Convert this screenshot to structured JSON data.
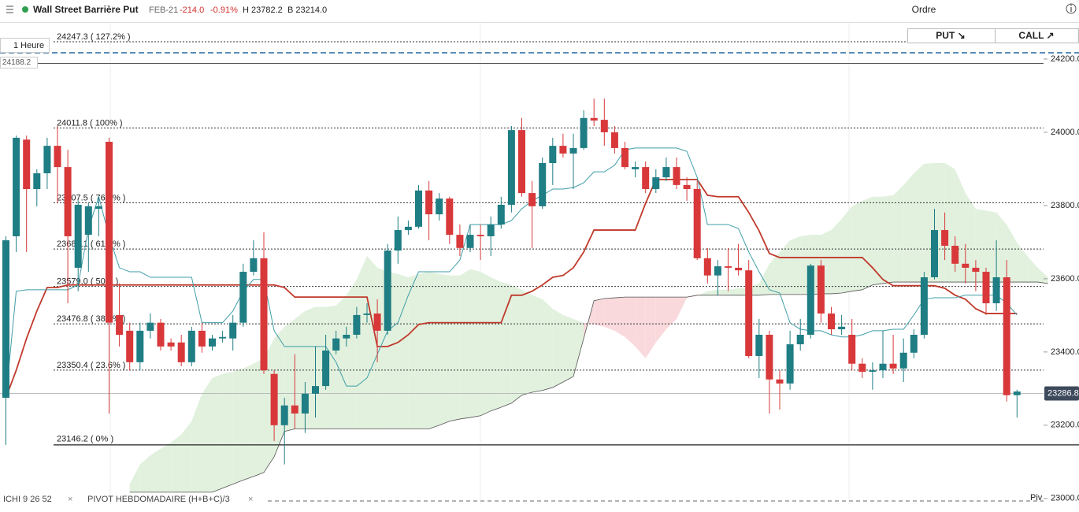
{
  "header": {
    "name": "Wall Street Barrière Put",
    "expiry": "FEB-21",
    "change": "-214.0",
    "change_pct": "-0.91%",
    "high": "H 23782.2",
    "low": "B 23214.0",
    "order": "Ordre",
    "buttons": [
      "PUT ↘",
      "CALL ↗"
    ]
  },
  "chart_data": {
    "type": "candlestick",
    "timeframe": "1 Heure",
    "indicators": [
      "ICHI  9  26  52",
      "PIVOT  HEBDOMADAIRE  (H+B+C)/3"
    ],
    "up_color": "#1f7d84",
    "down_color": "#d8383a",
    "ylim": [
      22963,
      24301
    ],
    "yticks": [
      {
        "value": 24200,
        "label": "24200.0"
      },
      {
        "value": 24000,
        "label": "24000.0"
      },
      {
        "value": 23800,
        "label": "23800.0"
      },
      {
        "value": 23600,
        "label": "23600.0"
      },
      {
        "value": 23400,
        "label": "23400.0"
      },
      {
        "value": 23200,
        "label": "23200.0"
      },
      {
        "value": 23000,
        "label": "23000.0"
      }
    ],
    "open": [
      23275,
      23716,
      23980,
      23845,
      23888,
      23963,
      23905,
      23630,
      23720,
      23791,
      23974,
      23501,
      23458,
      23372,
      23458,
      23480,
      23426,
      23426,
      23372,
      23458,
      23415,
      23437,
      23437,
      23480,
      23619,
      23656,
      23340,
      23200,
      23254,
      23232,
      23286,
      23307,
      23404,
      23437,
      23447,
      23501,
      23505,
      23458,
      23677,
      23733,
      23742,
      23841,
      23776,
      23819,
      23720,
      23684,
      23720,
      23716,
      23748,
      23802,
      24006,
      23834,
      23798,
      23916,
      23963,
      23942,
      23957,
      24039,
      24034,
      24000,
      23957,
      23899,
      23905,
      23845,
      23877,
      23905,
      23856,
      23845,
      23656,
      23609,
      23634,
      23630,
      23623,
      23389,
      23447,
      23325,
      23314,
      23421,
      23447,
      23636,
      23505,
      23462,
      23447,
      23368,
      23346,
      23350,
      23368,
      23355,
      23398,
      23447,
      23604,
      23733,
      23690,
      23641,
      23630,
      23619,
      23533,
      23604,
      23282
    ],
    "close": [
      23705,
      23985,
      23845,
      23888,
      23963,
      23905,
      23716,
      23802,
      23798,
      23798,
      23480,
      23447,
      23372,
      23458,
      23480,
      23415,
      23415,
      23372,
      23458,
      23415,
      23437,
      23441,
      23480,
      23619,
      23656,
      23350,
      23200,
      23254,
      23232,
      23286,
      23307,
      23404,
      23437,
      23447,
      23501,
      23505,
      23458,
      23677,
      23733,
      23742,
      23841,
      23776,
      23819,
      23720,
      23684,
      23720,
      23716,
      23748,
      23802,
      24006,
      23834,
      23798,
      23916,
      23963,
      23942,
      23957,
      24039,
      24032,
      24000,
      23957,
      23905,
      23905,
      23845,
      23877,
      23905,
      23856,
      23845,
      23656,
      23609,
      23634,
      23630,
      23623,
      23389,
      23447,
      23325,
      23314,
      23421,
      23447,
      23636,
      23505,
      23462,
      23469,
      23368,
      23346,
      23350,
      23368,
      23355,
      23398,
      23447,
      23604,
      23733,
      23690,
      23641,
      23630,
      23619,
      23533,
      23604,
      23282,
      23292
    ],
    "high": [
      23716,
      23991,
      23991,
      23899,
      23985,
      24017,
      23952,
      23813,
      23806,
      23824,
      23985,
      23587,
      23480,
      23480,
      23505,
      23490,
      23437,
      23447,
      23469,
      23480,
      23447,
      23458,
      23501,
      23641,
      23705,
      23727,
      23350,
      23275,
      23394,
      23318,
      23415,
      23447,
      23458,
      23469,
      23523,
      23533,
      23544,
      23695,
      23770,
      23759,
      23856,
      23867,
      23834,
      23824,
      23748,
      23748,
      23748,
      23770,
      23824,
      24017,
      24039,
      23867,
      23931,
      23985,
      23996,
      23996,
      24060,
      24092,
      24092,
      24017,
      23974,
      23920,
      23920,
      23899,
      23931,
      23931,
      23877,
      23867,
      23684,
      23651,
      23684,
      23695,
      23651,
      23490,
      23458,
      23350,
      23458,
      23490,
      23641,
      23651,
      23523,
      23501,
      23490,
      23383,
      23372,
      23458,
      23447,
      23437,
      23462,
      23619,
      23791,
      23781,
      23716,
      23695,
      23651,
      23630,
      23705,
      23651,
      23297
    ],
    "low": [
      23146,
      23673,
      23673,
      23798,
      23845,
      23806,
      23533,
      23566,
      23619,
      23716,
      23232,
      23415,
      23350,
      23350,
      23437,
      23404,
      23404,
      23361,
      23361,
      23398,
      23404,
      23426,
      23404,
      23469,
      23609,
      23340,
      23157,
      23093,
      23190,
      23179,
      23221,
      23297,
      23394,
      23415,
      23437,
      23480,
      23372,
      23447,
      23641,
      23720,
      23737,
      23705,
      23759,
      23695,
      23662,
      23673,
      23651,
      23662,
      23737,
      23781,
      23824,
      23684,
      23791,
      23856,
      23931,
      23845,
      23952,
      24017,
      23963,
      23942,
      23899,
      23877,
      23834,
      23834,
      23867,
      23845,
      23813,
      23651,
      23587,
      23555,
      23566,
      23609,
      23383,
      23329,
      23232,
      23243,
      23297,
      23404,
      23437,
      23480,
      23447,
      23447,
      23350,
      23329,
      23297,
      23329,
      23340,
      23318,
      23383,
      23437,
      23598,
      23651,
      23619,
      23587,
      23566,
      23501,
      23512,
      23265,
      23221
    ],
    "tenkan": {
      "color": "#3f9ea8",
      "values": [
        23275,
        23566,
        23570,
        23570,
        23570,
        23570,
        23570,
        23583,
        23737,
        23824,
        23716,
        23630,
        23619,
        23619,
        23604,
        23604,
        23604,
        23604,
        23604,
        23480,
        23480,
        23480,
        23512,
        23566,
        23598,
        23598,
        23458,
        23415,
        23415,
        23415,
        23415,
        23415,
        23372,
        23307,
        23307,
        23329,
        23394,
        23458,
        23480,
        23555,
        23619,
        23619,
        23619,
        23619,
        23651,
        23748,
        23748,
        23748,
        23748,
        23759,
        23791,
        23813,
        23828,
        23845,
        23845,
        23849,
        23862,
        23892,
        23892,
        23910,
        23952,
        23957,
        23957,
        23957,
        23957,
        23957,
        23948,
        23877,
        23748,
        23748,
        23748,
        23737,
        23673,
        23619,
        23570,
        23561,
        23480,
        23462,
        23458,
        23458,
        23447,
        23441,
        23441,
        23447,
        23458,
        23458,
        23462,
        23462,
        23501,
        23544,
        23548,
        23548,
        23548,
        23555,
        23555,
        23555,
        23555,
        23533,
        23501
      ]
    },
    "kijun": {
      "color": "#c0392b",
      "values": [
        23275,
        23350,
        23437,
        23512,
        23576,
        23576,
        23583,
        23583,
        23583,
        23583,
        23583,
        23583,
        23583,
        23583,
        23583,
        23583,
        23583,
        23583,
        23583,
        23583,
        23583,
        23583,
        23583,
        23583,
        23583,
        23583,
        23583,
        23576,
        23550,
        23550,
        23550,
        23550,
        23550,
        23550,
        23550,
        23550,
        23415,
        23415,
        23426,
        23447,
        23475,
        23480,
        23480,
        23480,
        23480,
        23480,
        23480,
        23480,
        23480,
        23555,
        23555,
        23566,
        23583,
        23604,
        23609,
        23630,
        23673,
        23733,
        23733,
        23733,
        23733,
        23733,
        23806,
        23871,
        23871,
        23871,
        23871,
        23871,
        23828,
        23824,
        23824,
        23824,
        23781,
        23731,
        23669,
        23658,
        23658,
        23658,
        23658,
        23658,
        23658,
        23658,
        23658,
        23658,
        23630,
        23598,
        23581,
        23581,
        23581,
        23581,
        23581,
        23574,
        23555,
        23544,
        23518,
        23505,
        23505,
        23505,
        23505
      ]
    },
    "cloud": {
      "up_color": "#e1f1de",
      "down_color": "#f9d9dc",
      "line_color": "#555555",
      "span_a": [
        null,
        null,
        null,
        null,
        null,
        null,
        null,
        null,
        null,
        null,
        null,
        null,
        23039,
        23093,
        23118,
        23136,
        23153,
        23175,
        23211,
        23286,
        23329,
        23340,
        23346,
        23355,
        23368,
        23383,
        23437,
        23469,
        23490,
        23512,
        23523,
        23523,
        23527,
        23555,
        23598,
        23662,
        23630,
        23619,
        23613,
        23604,
        23613,
        23619,
        23613,
        23609,
        23609,
        23626,
        23619,
        23604,
        23591,
        23583,
        23570,
        23555,
        23544,
        23518,
        23501,
        23490,
        23480,
        23475,
        23469,
        23458,
        23441,
        23415,
        23383,
        23426,
        23462,
        23490,
        23548,
        23553,
        23566,
        23570,
        23570,
        23574,
        23576,
        23587,
        23641,
        23673,
        23705,
        23716,
        23720,
        23720,
        23733,
        23763,
        23798,
        23813,
        23824,
        23824,
        23828,
        23856,
        23888,
        23914,
        23916,
        23916,
        23899,
        23834,
        23791,
        23786,
        23781,
        23748,
        23699,
        23662,
        23630,
        23604
      ],
      "span_b": [
        null,
        null,
        null,
        null,
        null,
        null,
        null,
        null,
        null,
        null,
        null,
        null,
        23017,
        23017,
        23017,
        23017,
        23017,
        23017,
        23017,
        23017,
        23017,
        23028,
        23039,
        23050,
        23060,
        23071,
        23114,
        23183,
        23190,
        23190,
        23190,
        23190,
        23190,
        23190,
        23190,
        23190,
        23190,
        23190,
        23190,
        23190,
        23190,
        23190,
        23200,
        23211,
        23217,
        23221,
        23226,
        23239,
        23249,
        23260,
        23282,
        23290,
        23295,
        23303,
        23318,
        23333,
        23437,
        23540,
        23546,
        23548,
        23550,
        23550,
        23550,
        23550,
        23550,
        23550,
        23550,
        23555,
        23555,
        23555,
        23555,
        23555,
        23555,
        23555,
        23557,
        23557,
        23557,
        23557,
        23557,
        23559,
        23559,
        23561,
        23566,
        23570,
        23583,
        23587,
        23591,
        23591,
        23591,
        23591,
        23591,
        23591,
        23591,
        23591,
        23591,
        23591,
        23591,
        23591,
        23591,
        23591,
        23591,
        23587
      ]
    },
    "levels_style": "dotted",
    "levels": [
      {
        "value": 24247.3,
        "label": "24247.3 ( 127.2% )"
      },
      {
        "value": 24011.8,
        "label": "24011.8 ( 100% )"
      },
      {
        "value": 23807.5,
        "label": "23807.5 ( 76.4% )"
      },
      {
        "value": 23681.1,
        "label": "23681.1 ( 61.8% )"
      },
      {
        "value": 23579.0,
        "label": "23579.0 ( 50% )"
      },
      {
        "value": 23476.8,
        "label": "23476.8 ( 38.2% )"
      },
      {
        "value": 23350.4,
        "label": "23350.4 ( 23.6% )"
      }
    ],
    "base_level": {
      "value": 23146.2,
      "label": "23146.2 ( 0% )"
    },
    "ref_price": 24188.2,
    "blue_level": 24217,
    "last_price": 23286.8,
    "pivot": {
      "value": 22993,
      "label": "Piv"
    }
  }
}
